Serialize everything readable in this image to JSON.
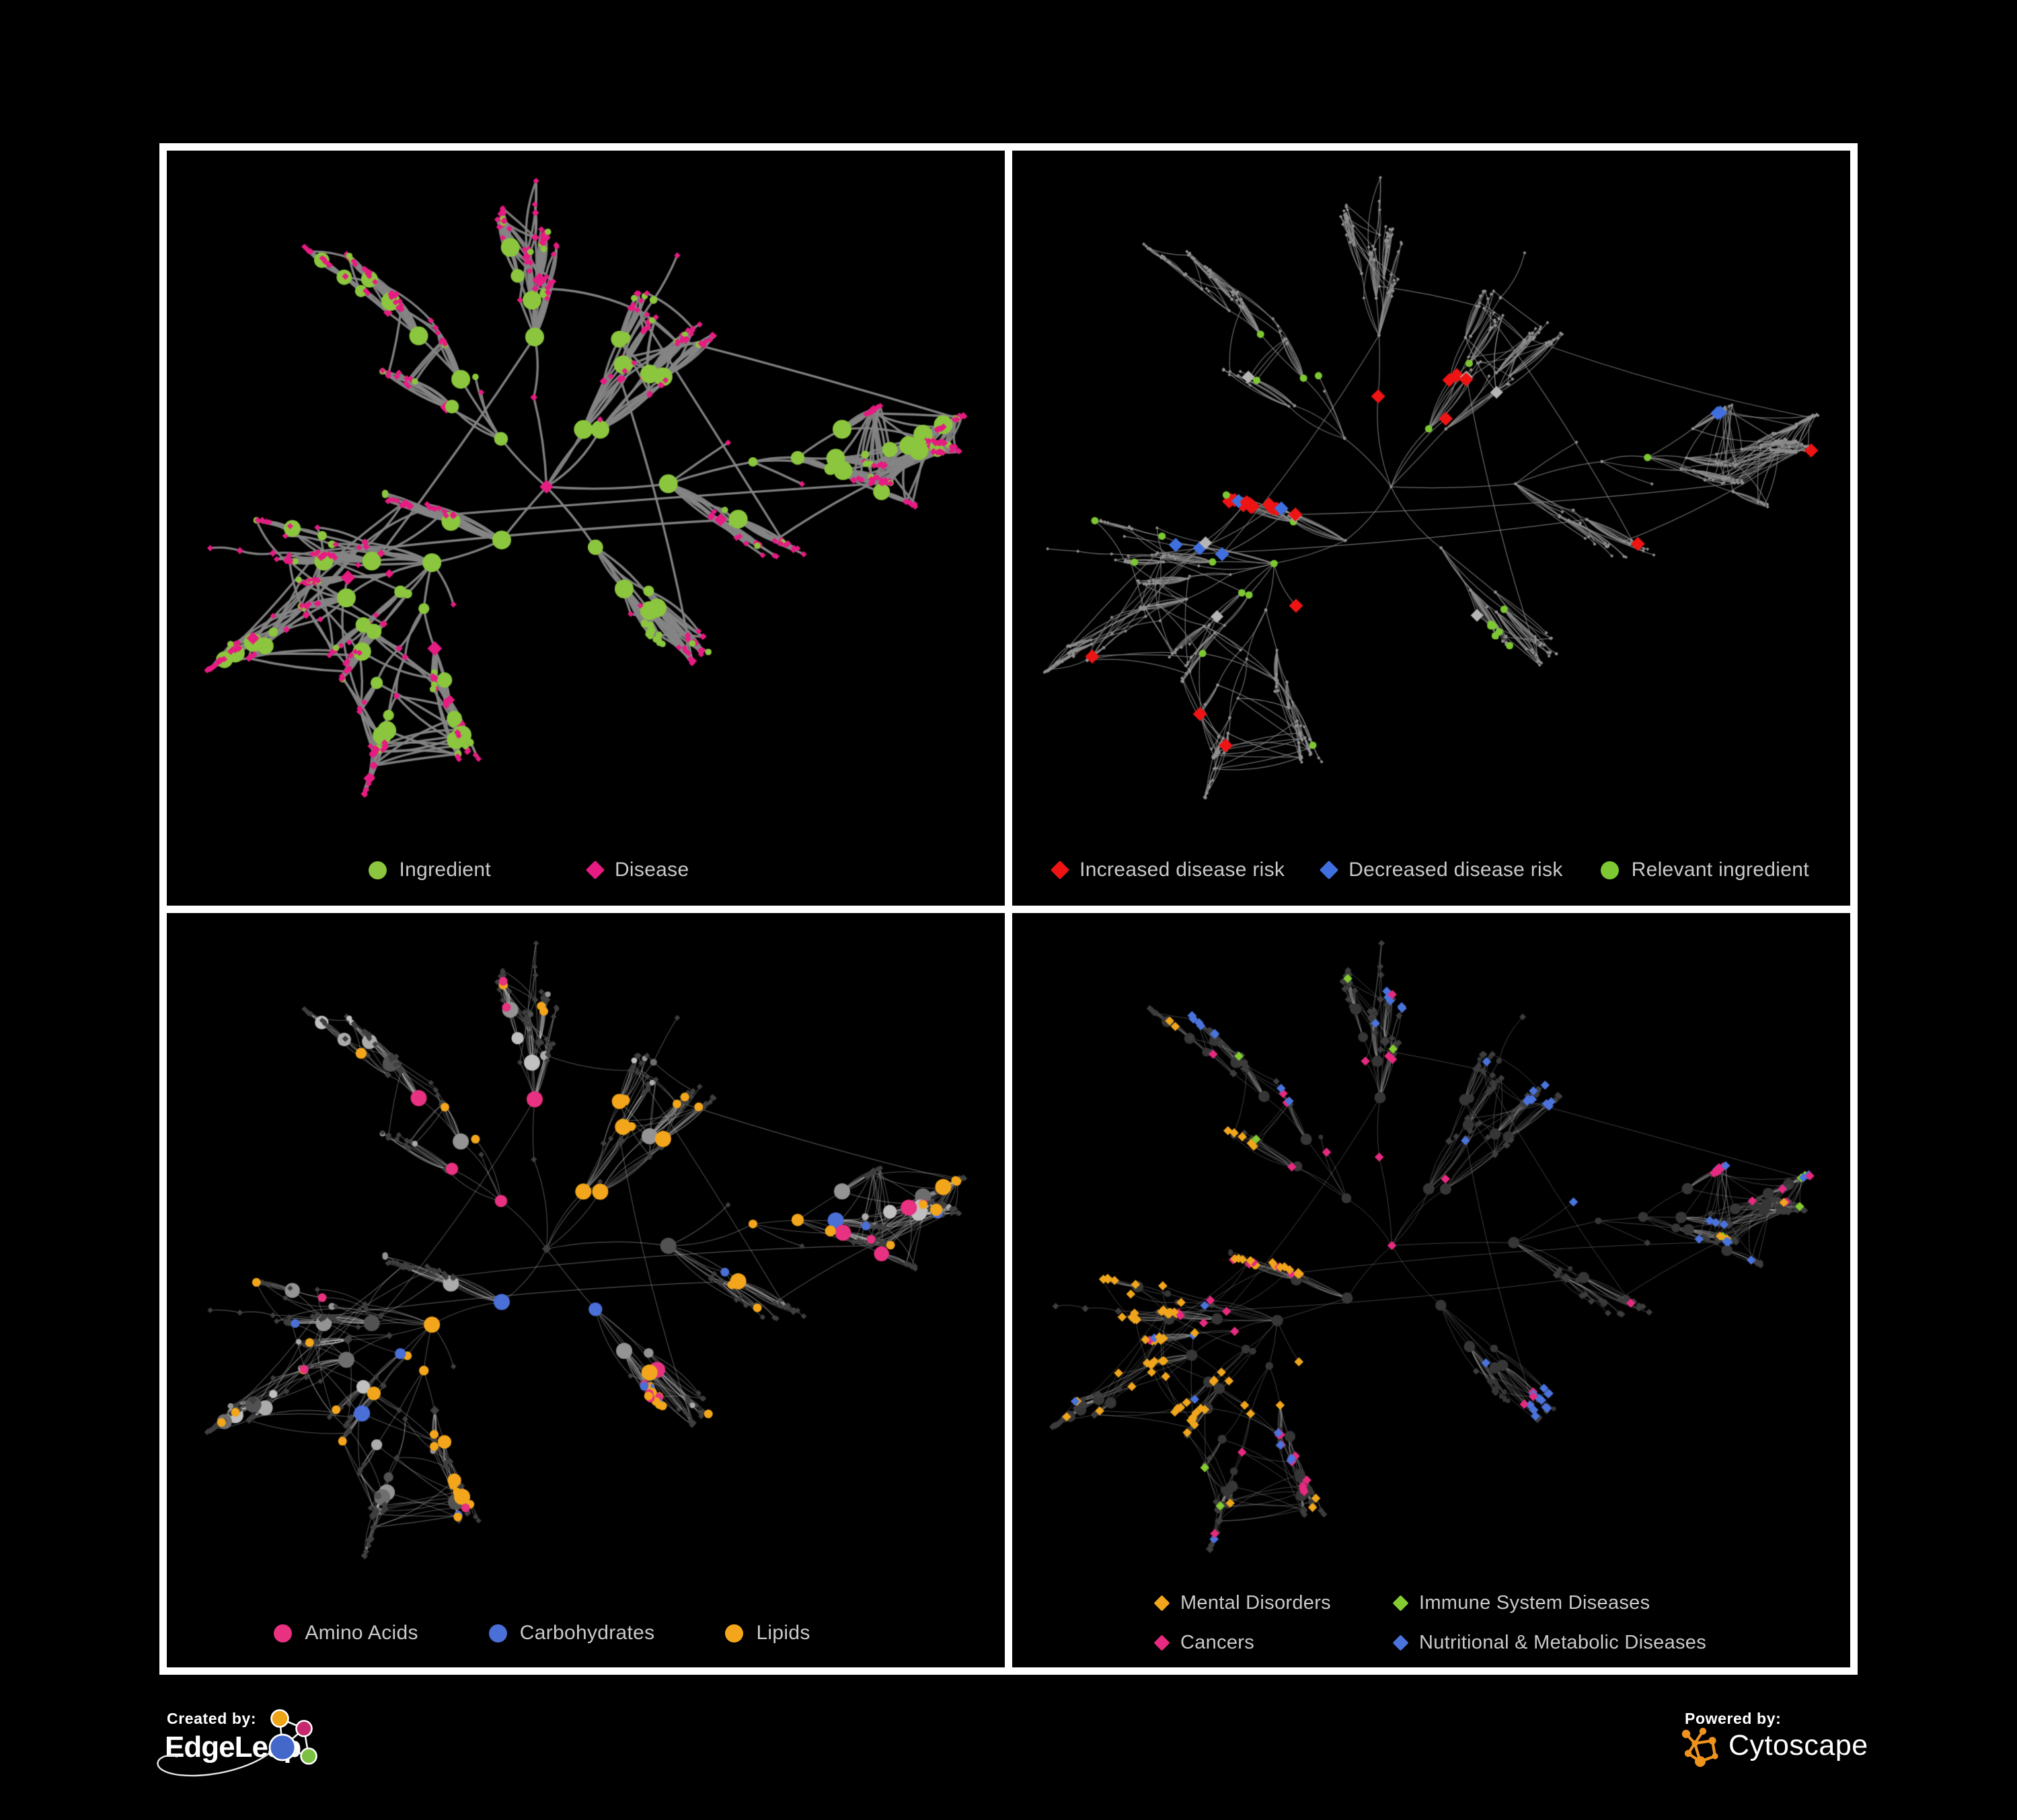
{
  "branding": {
    "created_by_label": "Created by:",
    "created_by_name": "EdgeLeap",
    "powered_by_label": "Powered by:",
    "powered_by_name": "Cytoscape"
  },
  "colors": {
    "background": "#000000",
    "panel_border": "#ffffff",
    "legend_text": "#c9c9c9",
    "ingredient_green": "#8bc63e",
    "disease_pink": "#e61c82",
    "risk_red": "#ee1414",
    "risk_blue": "#4070e0",
    "neutral_gray": "#b5b5b5",
    "lipid_orange": "#f3a61b",
    "mental_orange": "#f0a51c",
    "cancer_pink": "#e62a80",
    "metabolic_blue": "#4a73dc",
    "immune_green": "#84cc30",
    "cytoscape_orange": "#ef931f"
  },
  "networks": {
    "graph": {
      "seed": 1337,
      "backbone": 190,
      "chainP": 0.45,
      "burstP": 0.33,
      "burstMax": 13,
      "len0": 140,
      "decay": 0.8,
      "lenMin": 27,
      "extraNear": 210,
      "nearDist": 150,
      "extraFar": 8,
      "farMin": 250,
      "farMax": 650
    }
  },
  "panels": [
    {
      "id": "ingredient-disease",
      "legend": [
        {
          "label": "Ingredient",
          "color": "#8bc63e",
          "shape": "circle"
        },
        {
          "label": "Disease",
          "color": "#e61c82",
          "shape": "diamond"
        }
      ],
      "style": {
        "edge": {
          "c": "#858585",
          "a": 0.95,
          "w": 3.4
        },
        "circle": {
          "color": "#8bc63e",
          "rBase": 4.8,
          "rPer": 1.1,
          "rMax": 14
        },
        "diamond": {
          "color": "#e61c82",
          "sBase": 4.6,
          "sPer": 0.7,
          "sMax": 11
        },
        "margins": {
          "l": 60,
          "r": 60,
          "t": 45,
          "b": 165
        }
      }
    },
    {
      "id": "disease-risk",
      "legend": [
        {
          "label": "Increased disease risk",
          "color": "#ee1414",
          "shape": "diamond"
        },
        {
          "label": "Decreased disease risk",
          "color": "#4070e0",
          "shape": "diamond"
        },
        {
          "label": "Relevant ingredient",
          "color": "#7cc732",
          "shape": "circle"
        }
      ],
      "style": {
        "edge": {
          "c": "#8c8c8c",
          "a": 0.75,
          "w": 1.25
        },
        "circle": {
          "color": "#909090",
          "rBase": 2.4,
          "rPer": 0,
          "rMax": 2.4
        },
        "diamond": {
          "color": "#909090",
          "sBase": 2.6,
          "sPer": 0,
          "sMax": 2.6
        },
        "margins": {
          "l": 48,
          "r": 48,
          "t": 40,
          "b": 160
        },
        "clusters": [
          {
            "shape": "d",
            "count": 16,
            "at": [
              0.43,
              0.47
            ],
            "spread": 2.0,
            "color": "#ee1414",
            "size": 10.5
          },
          {
            "shape": "d",
            "count": 4,
            "at": [
              0.24,
              0.42
            ],
            "spread": 1.6,
            "color": "#ee1414",
            "size": 10.5
          },
          {
            "shape": "d",
            "count": 5,
            "at": [
              0.25,
              0.46
            ],
            "spread": 1.6,
            "color": "#4070e0",
            "size": 10.5
          },
          {
            "shape": "d",
            "count": 2,
            "at": [
              0.83,
              0.35
            ],
            "spread": 1.2,
            "color": "#4070e0",
            "size": 10.5
          },
          {
            "shape": "d",
            "count": 7,
            "at": [
              0.42,
              0.49
            ],
            "spread": 5.0,
            "color": "#b5b5b5",
            "size": 9.5
          },
          {
            "shape": "c",
            "count": 12,
            "at": [
              0.42,
              0.45
            ],
            "spread": 3.0,
            "color": "#7cc732",
            "size": 5.5
          },
          {
            "shape": "c",
            "count": 6,
            "at": [
              0.24,
              0.42
            ],
            "spread": 2.2,
            "color": "#7cc732",
            "size": 5.5
          }
        ],
        "scatter": [
          {
            "shape": "d",
            "count": 5,
            "color": "#ee1414",
            "size": 10.5
          },
          {
            "shape": "c",
            "count": 7,
            "color": "#7cc732",
            "size": 5.5
          }
        ]
      }
    },
    {
      "id": "chemical-classes",
      "legend": [
        {
          "label": "Amino Acids",
          "color": "#e83180",
          "shape": "circle"
        },
        {
          "label": "Carbohydrates",
          "color": "#4a6fd6",
          "shape": "circle"
        },
        {
          "label": "Lipids",
          "color": "#f3a61b",
          "shape": "circle"
        }
      ],
      "style": {
        "edge": {
          "c": "#c2c2c2",
          "a": 0.4,
          "w": 1.1
        },
        "circle": {
          "palette": [
            "#c0c0c0",
            "#ababab",
            "#ababab",
            "#949494",
            "#949494",
            "#6e6e6e",
            "#525252"
          ],
          "rBase": 4.2,
          "rPer": 1.0,
          "rMax": 12
        },
        "diamond": {
          "color": "#3f3f3f",
          "sBase": 4.3,
          "sPer": 0.3,
          "sMax": 7
        },
        "minColoredR": 6.5,
        "margins": {
          "l": 60,
          "r": 60,
          "t": 45,
          "b": 165
        },
        "clusters": [
          {
            "shape": "c",
            "count": 38,
            "at": "hub0",
            "spread": 1.9,
            "color": "#f3a61b"
          },
          {
            "shape": "c",
            "count": 9,
            "at": "hub0",
            "spread": 3.2,
            "color": "#4a6fd6"
          },
          {
            "shape": "c",
            "count": 6,
            "at": [
              0.71,
              0.66
            ],
            "spread": 2.2,
            "color": "#e83180"
          }
        ],
        "scatter": [
          {
            "shape": "c",
            "count": 22,
            "color": "#f3a61b"
          },
          {
            "shape": "c",
            "count": 4,
            "color": "#4a6fd6"
          },
          {
            "shape": "c",
            "count": 13,
            "color": "#e83180"
          }
        ]
      }
    },
    {
      "id": "disease-categories",
      "legend": [
        {
          "label": "Mental Disorders",
          "color": "#f0a51c",
          "shape": "diamond"
        },
        {
          "label": "Immune System Diseases",
          "color": "#84cc30",
          "shape": "diamond"
        },
        {
          "label": "Cancers",
          "color": "#e62a80",
          "shape": "diamond"
        },
        {
          "label": "Nutritional & Metabolic Diseases",
          "color": "#4a73dc",
          "shape": "diamond"
        }
      ],
      "style": {
        "edge": {
          "c": "#9d9d9d",
          "a": 0.45,
          "w": 0.9
        },
        "circle": {
          "color": "#363636",
          "rBase": 3.4,
          "rPer": 0.8,
          "rMax": 8.5
        },
        "diamond": {
          "color": "#3d3d3d",
          "sBase": 5.0,
          "sPer": 0.35,
          "sMax": 8
        },
        "margins": {
          "l": 60,
          "r": 60,
          "t": 45,
          "b": 175
        },
        "clusters": [
          {
            "shape": "d",
            "count": 80,
            "at": [
              0.235,
              0.47
            ],
            "spread": 1.5,
            "color": "#f0a51c",
            "size": 6.8
          },
          {
            "shape": "d",
            "count": 30,
            "at": [
              0.42,
              0.54
            ],
            "spread": 1.6,
            "color": "#e62a80",
            "size": 6.8
          },
          {
            "shape": "d",
            "count": 6,
            "at": [
              0.4,
              0.28
            ],
            "spread": 2.0,
            "color": "#e62a80",
            "size": 6.8
          },
          {
            "shape": "d",
            "count": 7,
            "at": [
              0.87,
              0.25
            ],
            "spread": 1.5,
            "color": "#e62a80",
            "size": 6.8
          },
          {
            "shape": "d",
            "count": 16,
            "at": [
              0.75,
              0.27
            ],
            "spread": 2.2,
            "color": "#4a73dc",
            "size": 6.8
          },
          {
            "shape": "d",
            "count": 10,
            "at": [
              0.57,
              0.56
            ],
            "spread": 1.8,
            "color": "#4a73dc",
            "size": 6.8
          },
          {
            "shape": "d",
            "count": 7,
            "at": [
              0.31,
              0.6
            ],
            "spread": 1.6,
            "color": "#4a73dc",
            "size": 6.8
          },
          {
            "shape": "d",
            "count": 6,
            "at": [
              0.26,
              0.12
            ],
            "spread": 2.0,
            "color": "#4a73dc",
            "size": 6.8
          },
          {
            "shape": "d",
            "count": 5,
            "at": [
              0.5,
              0.08
            ],
            "spread": 2.0,
            "color": "#4a73dc",
            "size": 6.8
          }
        ],
        "scatter": [
          {
            "shape": "d",
            "count": 12,
            "color": "#f0a51c",
            "size": 6.8
          },
          {
            "shape": "d",
            "count": 8,
            "color": "#e62a80",
            "size": 6.8
          },
          {
            "shape": "d",
            "count": 16,
            "color": "#4a73dc",
            "size": 6.8
          },
          {
            "shape": "d",
            "count": 10,
            "color": "#84cc30",
            "size": 6.8
          }
        ]
      }
    }
  ]
}
